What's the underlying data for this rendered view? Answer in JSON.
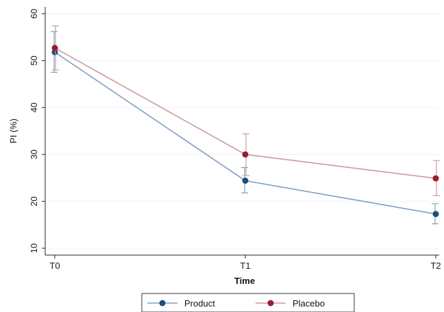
{
  "chart_data": {
    "type": "line",
    "title": "",
    "xlabel": "Time",
    "ylabel": "PI (%)",
    "categories": [
      "T0",
      "T1",
      "T2"
    ],
    "ylim": [
      10,
      60
    ],
    "yticks": [
      10,
      20,
      30,
      40,
      50,
      60
    ],
    "grid": true,
    "legend_position": "bottom",
    "series": [
      {
        "name": "Product",
        "color": "#1f4e79",
        "line_color": "#7f9fc0",
        "values": [
          51.8,
          24.4,
          17.3
        ],
        "error_low": [
          47.5,
          21.8,
          15.2
        ],
        "error_high": [
          56.2,
          27.2,
          19.5
        ]
      },
      {
        "name": "Placebo",
        "color": "#9b1b30",
        "line_color": "#c99aa3",
        "values": [
          52.7,
          30.0,
          24.9
        ],
        "error_low": [
          48.0,
          25.5,
          21.2
        ],
        "error_high": [
          57.4,
          34.4,
          28.7
        ]
      }
    ]
  }
}
